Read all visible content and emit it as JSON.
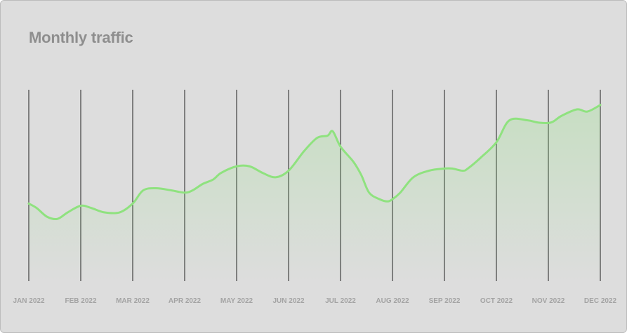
{
  "title": "Monthly traffic",
  "colors": {
    "line": "#8fe27f",
    "fill": "#8fe27f",
    "gridline": "#1e1e1e",
    "tick_label": "#a3a3a3",
    "title": "#8e8e8e",
    "card_background": "#dddddd"
  },
  "chart_data": {
    "type": "area",
    "title": "Monthly traffic",
    "xlabel": "",
    "ylabel": "",
    "grid": "vertical lines at each month",
    "y_axis_visible": false,
    "categories": [
      "JAN 2022",
      "FEB 2022",
      "MAR 2022",
      "APR 2022",
      "MAY 2022",
      "JUN 2022",
      "JUL 2022",
      "AUG 2022",
      "SEP 2022",
      "OCT 2022",
      "NOV 2022",
      "DEC 2022"
    ],
    "series": [
      {
        "x": [
          0,
          0.15,
          0.35,
          0.55,
          0.75,
          1.0,
          1.2,
          1.45,
          1.75,
          2.0,
          2.2,
          2.45,
          2.75,
          3.0,
          3.15,
          3.35,
          3.55,
          3.7,
          4.0,
          4.25,
          4.5,
          4.75,
          5.0,
          5.3,
          5.55,
          5.75,
          5.85,
          6.0,
          6.25,
          6.4,
          6.55,
          6.75,
          6.9,
          7.0,
          7.15,
          7.4,
          7.7,
          8.0,
          8.15,
          8.35,
          8.45,
          8.7,
          9.0,
          9.25,
          9.6,
          9.8,
          10.05,
          10.25,
          10.55,
          10.75,
          11.0
        ],
        "y": [
          37,
          35,
          31,
          30,
          33,
          36,
          35,
          33,
          33,
          37,
          43,
          44,
          43,
          42,
          43,
          46,
          48,
          51,
          54,
          54,
          51,
          49,
          52,
          61,
          67,
          68,
          70,
          63,
          56,
          50,
          42,
          39,
          38,
          39,
          42,
          49,
          52,
          53,
          53,
          52,
          53,
          58,
          65,
          75,
          75,
          74,
          74,
          77,
          80,
          79,
          82
        ]
      }
    ]
  }
}
